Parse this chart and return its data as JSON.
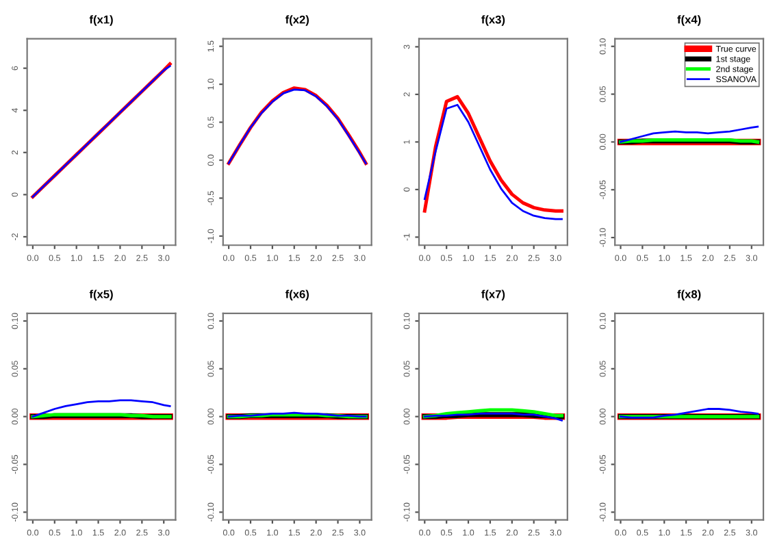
{
  "chart_data": [
    {
      "type": "line",
      "title": "f(x1)",
      "x": [
        0,
        0.25,
        0.5,
        0.75,
        1,
        1.25,
        1.5,
        1.75,
        2,
        2.25,
        2.5,
        2.75,
        3,
        3.14
      ],
      "xlim": [
        -0.13,
        3.27
      ],
      "xticks": [
        {
          "value": 0,
          "label": "0.0"
        },
        0.5,
        {
          "value": 1,
          "label": "1.0"
        },
        1.5,
        {
          "value": 2,
          "label": "2.0"
        },
        2.5,
        {
          "value": 3,
          "label": "3.0"
        }
      ],
      "ylim": [
        -2.4,
        7.4
      ],
      "yticks": [
        -2,
        0,
        2,
        4,
        6
      ],
      "grid": false,
      "legend": false,
      "series": [
        {
          "color": "#ff0000",
          "values": [
            -0.1,
            0.4,
            0.9,
            1.4,
            1.9,
            2.4,
            2.9,
            3.4,
            3.9,
            4.4,
            4.9,
            5.4,
            5.9,
            6.2
          ]
        },
        {
          "color": "#0000ff",
          "values": [
            -0.1,
            0.4,
            0.9,
            1.4,
            1.9,
            2.4,
            2.9,
            3.4,
            3.9,
            4.4,
            4.9,
            5.4,
            5.9,
            6.1
          ]
        }
      ]
    },
    {
      "type": "line",
      "title": "f(x2)",
      "x": [
        0,
        0.25,
        0.5,
        0.75,
        1,
        1.25,
        1.5,
        1.75,
        2,
        2.25,
        2.5,
        2.75,
        3,
        3.14
      ],
      "xlim": [
        -0.13,
        3.27
      ],
      "xticks": [
        {
          "value": 0,
          "label": "0.0"
        },
        0.5,
        {
          "value": 1,
          "label": "1.0"
        },
        1.5,
        {
          "value": 2,
          "label": "2.0"
        },
        2.5,
        {
          "value": 3,
          "label": "3.0"
        }
      ],
      "ylim": [
        -1.12,
        1.6
      ],
      "yticks": [
        {
          "value": -1,
          "label": "-1.0"
        },
        -0.5,
        {
          "value": 0,
          "label": "0.0"
        },
        0.5,
        {
          "value": 1,
          "label": "1.0"
        },
        1.5
      ],
      "grid": false,
      "legend": false,
      "series": [
        {
          "color": "#ff0000",
          "values": [
            -0.04,
            0.2,
            0.43,
            0.63,
            0.78,
            0.89,
            0.95,
            0.93,
            0.85,
            0.72,
            0.55,
            0.33,
            0.1,
            -0.04
          ]
        },
        {
          "color": "#0000ff",
          "values": [
            -0.04,
            0.2,
            0.43,
            0.62,
            0.77,
            0.88,
            0.93,
            0.92,
            0.84,
            0.71,
            0.54,
            0.32,
            0.09,
            -0.04
          ]
        }
      ]
    },
    {
      "type": "line",
      "title": "f(x3)",
      "x": [
        0,
        0.25,
        0.5,
        0.75,
        1,
        1.25,
        1.5,
        1.75,
        2,
        2.25,
        2.5,
        2.75,
        3,
        3.14
      ],
      "xlim": [
        -0.13,
        3.27
      ],
      "xticks": [
        {
          "value": 0,
          "label": "0.0"
        },
        0.5,
        {
          "value": 1,
          "label": "1.0"
        },
        1.5,
        {
          "value": 2,
          "label": "2.0"
        },
        2.5,
        {
          "value": 3,
          "label": "3.0"
        }
      ],
      "ylim": [
        -1.17,
        3.17
      ],
      "yticks": [
        -1,
        0,
        1,
        2,
        3
      ],
      "grid": false,
      "legend": false,
      "series": [
        {
          "color": "#ff0000",
          "values": [
            -0.45,
            0.9,
            1.85,
            1.95,
            1.6,
            1.1,
            0.6,
            0.2,
            -0.1,
            -0.28,
            -0.38,
            -0.43,
            -0.45,
            -0.45
          ]
        },
        {
          "color": "#0000ff",
          "values": [
            -0.2,
            0.8,
            1.7,
            1.78,
            1.42,
            0.92,
            0.42,
            0.02,
            -0.28,
            -0.45,
            -0.55,
            -0.6,
            -0.62,
            -0.62
          ]
        }
      ]
    },
    {
      "type": "line",
      "title": "f(x4)",
      "x": [
        0,
        0.25,
        0.5,
        0.75,
        1,
        1.25,
        1.5,
        1.75,
        2,
        2.25,
        2.5,
        2.75,
        3,
        3.14
      ],
      "xlim": [
        -0.13,
        3.27
      ],
      "xticks": [
        {
          "value": 0,
          "label": "0.0"
        },
        0.5,
        {
          "value": 1,
          "label": "1.0"
        },
        1.5,
        {
          "value": 2,
          "label": "2.0"
        },
        2.5,
        {
          "value": 3,
          "label": "3.0"
        }
      ],
      "ylim": [
        -0.108,
        0.108
      ],
      "yticks": [
        {
          "value": -0.1,
          "label": "-0.10"
        },
        -0.05,
        {
          "value": 0,
          "label": "0.00"
        },
        0.05,
        {
          "value": 0.1,
          "label": "0.10"
        }
      ],
      "grid": false,
      "legend": "top right",
      "series": [
        {
          "name": "True curve",
          "color": "#ff0000",
          "values": [
            0,
            0,
            0,
            0,
            0,
            0,
            0,
            0,
            0,
            0,
            0,
            0,
            0,
            0
          ]
        },
        {
          "name": "1st stage",
          "color": "#000000",
          "values": [
            0,
            0,
            0.001,
            0.001,
            0.001,
            0.001,
            0.001,
            0.001,
            0.001,
            0.001,
            0.001,
            0,
            0,
            0
          ]
        },
        {
          "name": "2nd stage",
          "color": "#00ff00",
          "values": [
            0,
            0.001,
            0.001,
            0.002,
            0.002,
            0.002,
            0.002,
            0.002,
            0.002,
            0.002,
            0.002,
            0.001,
            0.001,
            0
          ]
        },
        {
          "name": "SSANOVA",
          "color": "#0000ff",
          "values": [
            0,
            0.003,
            0.006,
            0.009,
            0.01,
            0.011,
            0.01,
            0.01,
            0.009,
            0.01,
            0.011,
            0.013,
            0.015,
            0.016
          ]
        }
      ]
    },
    {
      "type": "line",
      "title": "f(x5)",
      "x": [
        0,
        0.25,
        0.5,
        0.75,
        1,
        1.25,
        1.5,
        1.75,
        2,
        2.25,
        2.5,
        2.75,
        3,
        3.14
      ],
      "xlim": [
        -0.13,
        3.27
      ],
      "xticks": [
        {
          "value": 0,
          "label": "0.0"
        },
        0.5,
        {
          "value": 1,
          "label": "1.0"
        },
        1.5,
        {
          "value": 2,
          "label": "2.0"
        },
        2.5,
        {
          "value": 3,
          "label": "3.0"
        }
      ],
      "ylim": [
        -0.108,
        0.108
      ],
      "yticks": [
        {
          "value": -0.1,
          "label": "-0.10"
        },
        -0.05,
        {
          "value": 0,
          "label": "0.00"
        },
        0.05,
        {
          "value": 0.1,
          "label": "0.10"
        }
      ],
      "grid": false,
      "legend": false,
      "series": [
        {
          "color": "#ff0000",
          "values": [
            0,
            0,
            0,
            0,
            0,
            0,
            0,
            0,
            0,
            0,
            0,
            0,
            0,
            0
          ]
        },
        {
          "color": "#000000",
          "values": [
            0,
            0,
            0.001,
            0.001,
            0.001,
            0.001,
            0.001,
            0.001,
            0.001,
            0.001,
            0,
            0,
            0,
            0
          ]
        },
        {
          "color": "#00ff00",
          "values": [
            0,
            0.001,
            0.002,
            0.002,
            0.002,
            0.002,
            0.002,
            0.002,
            0.002,
            0.001,
            0.001,
            0,
            0,
            0
          ]
        },
        {
          "color": "#0000ff",
          "values": [
            0,
            0.004,
            0.008,
            0.011,
            0.013,
            0.015,
            0.016,
            0.016,
            0.017,
            0.017,
            0.016,
            0.015,
            0.012,
            0.011
          ]
        }
      ]
    },
    {
      "type": "line",
      "title": "f(x6)",
      "x": [
        0,
        0.25,
        0.5,
        0.75,
        1,
        1.25,
        1.5,
        1.75,
        2,
        2.25,
        2.5,
        2.75,
        3,
        3.14
      ],
      "xlim": [
        -0.13,
        3.27
      ],
      "xticks": [
        {
          "value": 0,
          "label": "0.0"
        },
        0.5,
        {
          "value": 1,
          "label": "1.0"
        },
        1.5,
        {
          "value": 2,
          "label": "2.0"
        },
        2.5,
        {
          "value": 3,
          "label": "3.0"
        }
      ],
      "ylim": [
        -0.108,
        0.108
      ],
      "yticks": [
        {
          "value": -0.1,
          "label": "-0.10"
        },
        -0.05,
        {
          "value": 0,
          "label": "0.00"
        },
        0.05,
        {
          "value": 0.1,
          "label": "0.10"
        }
      ],
      "grid": false,
      "legend": false,
      "series": [
        {
          "color": "#ff0000",
          "values": [
            0,
            0,
            0,
            0,
            0,
            0,
            0,
            0,
            0,
            0,
            0,
            0,
            0,
            0
          ]
        },
        {
          "color": "#000000",
          "values": [
            0,
            0,
            0.001,
            0.001,
            0.001,
            0.001,
            0.001,
            0.001,
            0.001,
            0.001,
            0,
            0,
            0,
            0
          ]
        },
        {
          "color": "#00ff00",
          "values": [
            0,
            0,
            0.001,
            0.001,
            0.002,
            0.002,
            0.002,
            0.002,
            0.002,
            0.001,
            0.001,
            0,
            0,
            0
          ]
        },
        {
          "color": "#0000ff",
          "values": [
            0,
            0.001,
            0.001,
            0.002,
            0.003,
            0.003,
            0.004,
            0.003,
            0.003,
            0.002,
            0.001,
            0.001,
            0,
            0
          ]
        }
      ]
    },
    {
      "type": "line",
      "title": "f(x7)",
      "x": [
        0,
        0.25,
        0.5,
        0.75,
        1,
        1.25,
        1.5,
        1.75,
        2,
        2.25,
        2.5,
        2.75,
        3,
        3.14
      ],
      "xlim": [
        -0.13,
        3.27
      ],
      "xticks": [
        {
          "value": 0,
          "label": "0.0"
        },
        0.5,
        {
          "value": 1,
          "label": "1.0"
        },
        1.5,
        {
          "value": 2,
          "label": "2.0"
        },
        2.5,
        {
          "value": 3,
          "label": "3.0"
        }
      ],
      "ylim": [
        -0.108,
        0.108
      ],
      "yticks": [
        {
          "value": -0.1,
          "label": "-0.10"
        },
        -0.05,
        {
          "value": 0,
          "label": "0.00"
        },
        0.05,
        {
          "value": 0.1,
          "label": "0.10"
        }
      ],
      "grid": false,
      "legend": false,
      "series": [
        {
          "color": "#ff0000",
          "values": [
            0,
            0,
            0,
            0.001,
            0.001,
            0.001,
            0.001,
            0.001,
            0.001,
            0.001,
            0.001,
            0,
            0,
            0
          ]
        },
        {
          "color": "#000000",
          "values": [
            0,
            0,
            0.001,
            0.001,
            0.002,
            0.002,
            0.002,
            0.002,
            0.002,
            0.002,
            0.001,
            0.001,
            0,
            0
          ]
        },
        {
          "color": "#00ff00",
          "values": [
            0,
            0.001,
            0.003,
            0.004,
            0.005,
            0.006,
            0.007,
            0.007,
            0.007,
            0.006,
            0.005,
            0.003,
            0.001,
            0.001
          ]
        },
        {
          "color": "#0000ff",
          "values": [
            0,
            0.001,
            0.001,
            0.002,
            0.002,
            0.003,
            0.003,
            0.003,
            0.003,
            0.002,
            0.002,
            0,
            -0.002,
            -0.004
          ]
        }
      ]
    },
    {
      "type": "line",
      "title": "f(x8)",
      "x": [
        0,
        0.25,
        0.5,
        0.75,
        1,
        1.25,
        1.5,
        1.75,
        2,
        2.25,
        2.5,
        2.75,
        3,
        3.14
      ],
      "xlim": [
        -0.13,
        3.27
      ],
      "xticks": [
        {
          "value": 0,
          "label": "0.0"
        },
        0.5,
        {
          "value": 1,
          "label": "1.0"
        },
        1.5,
        {
          "value": 2,
          "label": "2.0"
        },
        2.5,
        {
          "value": 3,
          "label": "3.0"
        }
      ],
      "ylim": [
        -0.108,
        0.108
      ],
      "yticks": [
        {
          "value": -0.1,
          "label": "-0.10"
        },
        -0.05,
        {
          "value": 0,
          "label": "0.00"
        },
        0.05,
        {
          "value": 0.1,
          "label": "0.10"
        }
      ],
      "grid": false,
      "legend": false,
      "series": [
        {
          "color": "#ff0000",
          "values": [
            0,
            0,
            0,
            0,
            0,
            0,
            0,
            0,
            0,
            0,
            0,
            0,
            0,
            0
          ]
        },
        {
          "color": "#000000",
          "values": [
            0,
            0,
            0,
            0,
            0,
            0,
            0,
            0,
            0,
            0,
            0,
            0,
            0,
            0
          ]
        },
        {
          "color": "#00ff00",
          "values": [
            0,
            0,
            0,
            0,
            0,
            0,
            0,
            0,
            0,
            0,
            0,
            0,
            0,
            0
          ]
        },
        {
          "color": "#0000ff",
          "values": [
            0,
            -0.001,
            -0.001,
            -0.001,
            0.001,
            0.002,
            0.004,
            0.006,
            0.008,
            0.008,
            0.007,
            0.005,
            0.004,
            0.003
          ]
        }
      ]
    }
  ]
}
